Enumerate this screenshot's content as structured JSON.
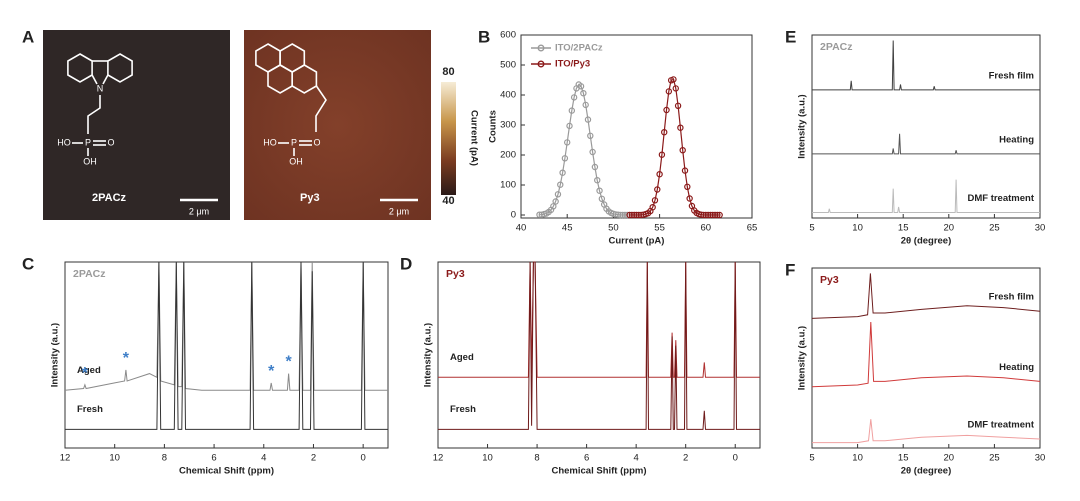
{
  "panel_a": {
    "panel": "A",
    "images": [
      {
        "label": "2PACz",
        "scale_bar": "2 μm",
        "atoms": [
          "N",
          "HO",
          "P",
          "O",
          "OH"
        ]
      },
      {
        "label": "Py3",
        "scale_bar": "2 μm",
        "atoms": [
          "HO",
          "P",
          "O",
          "OH"
        ]
      }
    ],
    "colorbar": {
      "label": "Current (pA)",
      "range": [
        40,
        80
      ],
      "ticks": [
        80,
        40
      ]
    }
  },
  "chart_data": [
    {
      "panel": "B",
      "type": "scatter",
      "xlabel": "Current (pA)",
      "ylabel": "Counts",
      "xlim": [
        40,
        65
      ],
      "xticks": [
        40,
        45,
        50,
        55,
        60,
        65
      ],
      "ylim": [
        -10,
        600
      ],
      "yticks": [
        0,
        100,
        200,
        300,
        400,
        500,
        600
      ],
      "legend": "upper left",
      "series": [
        {
          "name": "ITO/2PACz",
          "color": "#9a9a9a",
          "x": [
            42,
            42.25,
            42.5,
            42.75,
            43,
            43.25,
            43.5,
            43.75,
            44,
            44.25,
            44.5,
            44.75,
            45,
            45.25,
            45.5,
            45.75,
            46,
            46.25,
            46.5,
            46.75,
            47,
            47.25,
            47.5,
            47.75,
            48,
            48.25,
            48.5,
            48.75,
            49,
            49.25,
            49.5,
            49.75,
            50,
            50.25,
            50.5,
            50.75,
            51,
            51.25,
            51.5
          ],
          "values": [
            1,
            1,
            3,
            5,
            10,
            17,
            29,
            45,
            69,
            101,
            141,
            189,
            242,
            297,
            348,
            392,
            422,
            435,
            429,
            406,
            367,
            318,
            264,
            210,
            160,
            116,
            81,
            54,
            35,
            21,
            12,
            7,
            4,
            2,
            1,
            0,
            0,
            0,
            0
          ]
        },
        {
          "name": "ITO/Py3",
          "color": "#8b1a1a",
          "x": [
            51.75,
            52,
            52.25,
            52.5,
            52.75,
            53,
            53.25,
            53.5,
            53.75,
            54,
            54.25,
            54.5,
            54.75,
            55,
            55.25,
            55.5,
            55.75,
            56,
            56.25,
            56.5,
            56.75,
            57,
            57.25,
            57.5,
            57.75,
            58,
            58.25,
            58.5,
            58.75,
            59,
            59.25,
            59.5,
            59.75,
            60,
            60.25,
            60.5,
            60.75,
            61,
            61.25,
            61.5
          ],
          "values": [
            0,
            0,
            0,
            0,
            0,
            0,
            1,
            3,
            6,
            13,
            26,
            49,
            85,
            136,
            201,
            276,
            350,
            412,
            449,
            452,
            422,
            364,
            291,
            216,
            148,
            94,
            55,
            30,
            15,
            7,
            3,
            1,
            0,
            0,
            0,
            0,
            0,
            0,
            0,
            0
          ]
        }
      ]
    },
    {
      "panel": "C",
      "type": "line",
      "label": "2PACz",
      "label_color": "#9a9a9a",
      "xlabel": "Chemical Shift (ppm)",
      "ylabel": "Intensity (a.u.)",
      "xlim": [
        12,
        -1
      ],
      "xticks": [
        12,
        10,
        8,
        6,
        4,
        2,
        0
      ],
      "ylim": [
        0,
        100
      ],
      "series": [
        {
          "name": "Aged",
          "color": "#8a8a8a",
          "x": [
            12,
            11.25,
            11.2,
            11.15,
            10,
            9.6,
            9.55,
            9.5,
            8.6,
            8.3,
            8.22,
            8.15,
            7.6,
            7.52,
            7.45,
            7.3,
            7.22,
            7.15,
            6.5,
            4.55,
            4.48,
            4.41,
            3.75,
            3.7,
            3.65,
            3.05,
            3.0,
            2.95,
            2.58,
            2.5,
            2.43,
            2.12,
            2.05,
            1.98,
            0.07,
            0,
            -0.07,
            -1
          ],
          "values": [
            31,
            32,
            34,
            32,
            35,
            36,
            42,
            36,
            40,
            38,
            100,
            36,
            34,
            100,
            33,
            33,
            100,
            32,
            31,
            31,
            100,
            31,
            31,
            35,
            31,
            31,
            40,
            31,
            31,
            100,
            31,
            31,
            100,
            31,
            31,
            100,
            31,
            31
          ]
        },
        {
          "name": "Fresh",
          "color": "#333333",
          "x": [
            12,
            8.3,
            8.22,
            8.15,
            7.6,
            7.52,
            7.45,
            7.3,
            7.22,
            7.15,
            4.55,
            4.48,
            4.41,
            2.58,
            2.5,
            2.43,
            2.12,
            2.05,
            1.98,
            0.07,
            0,
            -0.07,
            -1
          ],
          "values": [
            10,
            10,
            100,
            10,
            10,
            100,
            10,
            10,
            100,
            10,
            10,
            100,
            10,
            10,
            100,
            10,
            10,
            95,
            10,
            10,
            100,
            10,
            10
          ]
        }
      ],
      "annotations": [
        {
          "text": "*",
          "x": 11.2,
          "y": 40
        },
        {
          "text": "*",
          "x": 9.55,
          "y": 48
        },
        {
          "text": "*",
          "x": 3.7,
          "y": 41
        },
        {
          "text": "*",
          "x": 3.0,
          "y": 46
        }
      ]
    },
    {
      "panel": "D",
      "type": "line",
      "label": "Py3",
      "label_color": "#8b1a1a",
      "xlabel": "Chemical Shift (ppm)",
      "ylabel": "Intensity (a.u.)",
      "xlim": [
        12,
        -1
      ],
      "xticks": [
        12,
        10,
        8,
        6,
        4,
        2,
        0
      ],
      "ylim": [
        0,
        100
      ],
      "series": [
        {
          "name": "Aged",
          "color": "#b03030",
          "x": [
            12,
            8.35,
            8.28,
            8.22,
            8.15,
            8.08,
            8.0,
            3.6,
            3.55,
            3.5,
            2.6,
            2.55,
            2.5,
            2.45,
            2.4,
            2.35,
            2.05,
            2.0,
            1.95,
            1.3,
            1.25,
            1.2,
            0.05,
            0,
            -0.05,
            -1
          ],
          "values": [
            38,
            38,
            100,
            40,
            100,
            100,
            38,
            38,
            100,
            38,
            38,
            62,
            38,
            38,
            58,
            38,
            38,
            100,
            38,
            38,
            46,
            38,
            38,
            100,
            38,
            38
          ]
        },
        {
          "name": "Fresh",
          "color": "#6e1a1a",
          "x": [
            12,
            8.35,
            8.28,
            8.22,
            8.15,
            8.08,
            8.0,
            3.6,
            3.55,
            3.5,
            2.6,
            2.55,
            2.5,
            2.45,
            2.4,
            2.35,
            2.05,
            2.0,
            1.95,
            1.3,
            1.25,
            1.2,
            0.05,
            0,
            -0.05,
            -1
          ],
          "values": [
            10,
            10,
            100,
            12,
            100,
            100,
            10,
            10,
            100,
            10,
            10,
            60,
            10,
            10,
            55,
            10,
            10,
            100,
            10,
            10,
            20,
            10,
            10,
            100,
            10,
            10
          ]
        }
      ]
    },
    {
      "panel": "E",
      "type": "line",
      "label": "2PACz",
      "label_color": "#9a9a9a",
      "xlabel": "2θ (degree)",
      "ylabel": "Intensity (a.u.)",
      "xlim": [
        5,
        30
      ],
      "xticks": [
        5,
        10,
        15,
        20,
        25,
        30
      ],
      "ylim": [
        0,
        100
      ],
      "series": [
        {
          "name": "Fresh film",
          "color": "#404040",
          "x": [
            5,
            9.2,
            9.3,
            9.4,
            13.8,
            13.9,
            14.0,
            14.6,
            14.7,
            14.8,
            18.3,
            18.4,
            18.5,
            30
          ],
          "values": [
            70,
            70,
            75,
            70,
            70,
            97,
            70,
            70,
            73,
            70,
            70,
            72,
            70,
            70
          ]
        },
        {
          "name": "Heating",
          "color": "#555555",
          "x": [
            5,
            13.8,
            13.9,
            14.0,
            14.5,
            14.6,
            14.7,
            20.7,
            20.8,
            20.9,
            30
          ],
          "values": [
            35,
            35,
            38,
            35,
            35,
            46,
            35,
            35,
            37,
            35,
            35
          ]
        },
        {
          "name": "DMF treatment",
          "color": "#bbbbbb",
          "x": [
            5,
            6.8,
            6.9,
            7.0,
            13.8,
            13.9,
            14.0,
            14.4,
            14.5,
            14.6,
            20.7,
            20.8,
            20.9,
            30
          ],
          "values": [
            3,
            3,
            5,
            3,
            3,
            16,
            3,
            3,
            6,
            3,
            3,
            21,
            3,
            3
          ]
        }
      ]
    },
    {
      "panel": "F",
      "type": "line",
      "label": "Py3",
      "label_color": "#8b1a1a",
      "xlabel": "2θ (degree)",
      "ylabel": "Intensity (a.u.)",
      "xlim": [
        5,
        30
      ],
      "xticks": [
        5,
        10,
        15,
        20,
        25,
        30
      ],
      "ylim": [
        0,
        100
      ],
      "series": [
        {
          "name": "Fresh film",
          "color": "#6e1f1f",
          "x": [
            5,
            10,
            11.1,
            11.4,
            11.7,
            13,
            17,
            22,
            26,
            30
          ],
          "values": [
            72,
            73,
            74,
            97,
            75,
            75,
            77,
            79,
            78,
            76
          ]
        },
        {
          "name": "Heating",
          "color": "#d03a3a",
          "x": [
            5,
            10,
            11.15,
            11.45,
            11.75,
            13,
            17,
            22,
            26,
            30
          ],
          "values": [
            34,
            35,
            36,
            70,
            37,
            37,
            39,
            40,
            39,
            37
          ]
        },
        {
          "name": "DMF treatment",
          "color": "#f0a0a0",
          "x": [
            5,
            10,
            11.2,
            11.45,
            11.7,
            13,
            17,
            22,
            26,
            30
          ],
          "values": [
            3,
            3,
            4,
            16,
            4,
            4,
            6,
            7,
            6,
            5
          ]
        }
      ]
    }
  ]
}
